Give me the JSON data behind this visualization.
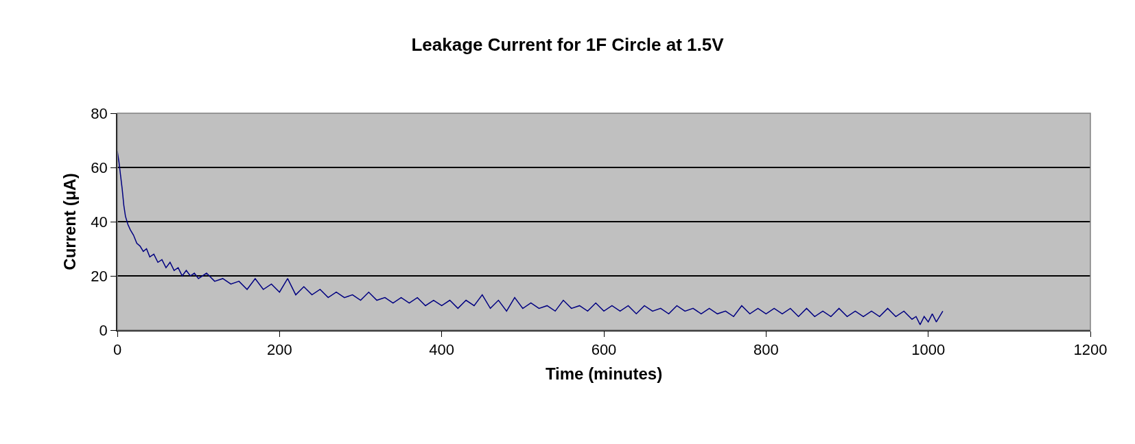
{
  "chart_data": {
    "type": "line",
    "title": "Leakage Current for 1F Circle at 1.5V",
    "xlabel": "Time (minutes)",
    "ylabel": "Current (μA)",
    "x": [
      0,
      2,
      4,
      6,
      8,
      10,
      13,
      16,
      20,
      24,
      28,
      32,
      36,
      40,
      45,
      50,
      55,
      60,
      65,
      70,
      75,
      80,
      85,
      90,
      95,
      100,
      110,
      120,
      130,
      140,
      150,
      160,
      170,
      180,
      190,
      200,
      210,
      220,
      230,
      240,
      250,
      260,
      270,
      280,
      290,
      300,
      310,
      320,
      330,
      340,
      350,
      360,
      370,
      380,
      390,
      400,
      410,
      420,
      430,
      440,
      450,
      460,
      470,
      480,
      490,
      500,
      510,
      520,
      530,
      540,
      550,
      560,
      570,
      580,
      590,
      600,
      610,
      620,
      630,
      640,
      650,
      660,
      670,
      680,
      690,
      700,
      710,
      720,
      730,
      740,
      750,
      760,
      770,
      780,
      790,
      800,
      810,
      820,
      830,
      840,
      850,
      860,
      870,
      880,
      890,
      900,
      910,
      920,
      930,
      940,
      950,
      960,
      970,
      980,
      985,
      990,
      995,
      1000,
      1005,
      1010,
      1018
    ],
    "series": [
      {
        "color": "#000080",
        "values": [
          66,
          62,
          57,
          52,
          46,
          42,
          39,
          37,
          35,
          32,
          31,
          29,
          30,
          27,
          28,
          25,
          26,
          23,
          25,
          22,
          23,
          20,
          22,
          20,
          21,
          19,
          21,
          18,
          19,
          17,
          18,
          15,
          19,
          15,
          17,
          14,
          19,
          13,
          16,
          13,
          15,
          12,
          14,
          12,
          13,
          11,
          14,
          11,
          12,
          10,
          12,
          10,
          12,
          9,
          11,
          9,
          11,
          8,
          11,
          9,
          13,
          8,
          11,
          7,
          12,
          8,
          10,
          8,
          9,
          7,
          11,
          8,
          9,
          7,
          10,
          7,
          9,
          7,
          9,
          6,
          9,
          7,
          8,
          6,
          9,
          7,
          8,
          6,
          8,
          6,
          7,
          5,
          9,
          6,
          8,
          6,
          8,
          6,
          8,
          5,
          8,
          5,
          7,
          5,
          8,
          5,
          7,
          5,
          7,
          5,
          8,
          5,
          7,
          4,
          5,
          2,
          5,
          3,
          6,
          3,
          7
        ]
      }
    ],
    "xlim": [
      0,
      1200
    ],
    "xticks": [
      0,
      200,
      400,
      600,
      800,
      1000,
      1200
    ],
    "ylim": [
      0,
      80
    ],
    "yticks": [
      0,
      20,
      40,
      60,
      80
    ],
    "grid": "y",
    "legend": false,
    "marker": "none",
    "line_style": "solid"
  }
}
